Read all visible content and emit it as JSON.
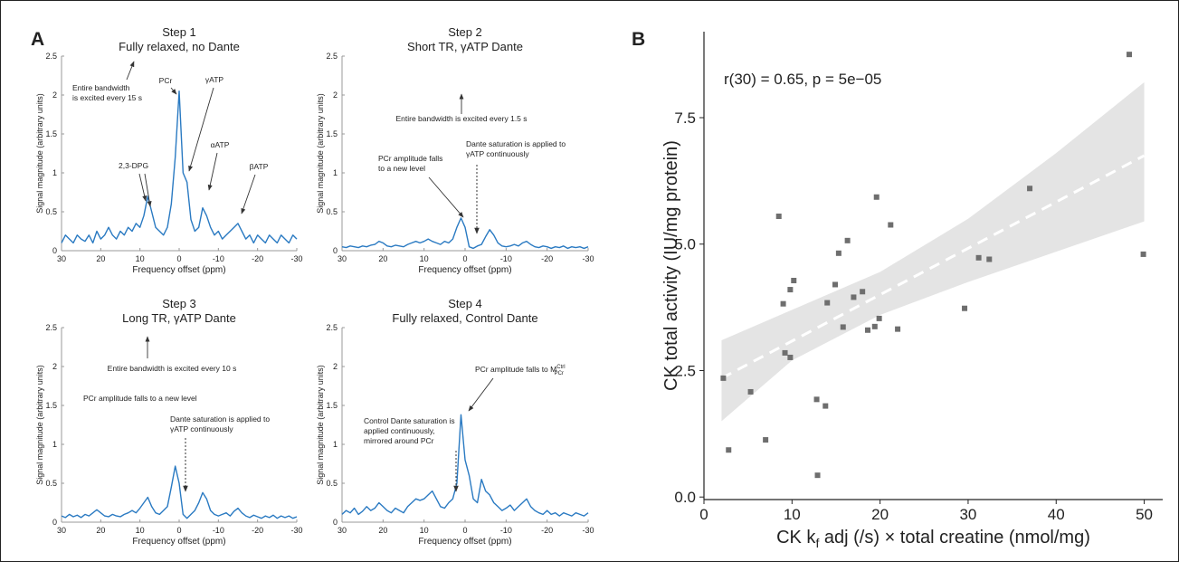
{
  "panel_labels": [
    "A",
    "B"
  ],
  "chart_data": [
    {
      "type": "line",
      "title": "Step 1",
      "subtitle": "Fully relaxed, no Dante",
      "x_label": "Frequency offset (ppm)",
      "y_label": "Signal magnitude (arbitrary units)",
      "color": "#2a7ac2",
      "xlim": [
        30,
        -30
      ],
      "ylim": [
        0,
        2.5
      ],
      "xticks": [
        30,
        20,
        10,
        0,
        -10,
        -20,
        -30
      ],
      "yticks": [
        0,
        0.5,
        1,
        1.5,
        2,
        2.5
      ],
      "x": [
        30,
        29,
        28,
        27,
        26,
        25,
        24,
        23,
        22,
        21,
        20,
        19,
        18,
        17,
        16,
        15,
        14,
        13,
        12,
        11,
        10,
        9,
        8,
        7,
        6,
        5,
        4,
        3,
        2,
        1,
        0,
        -1,
        -2,
        -3,
        -4,
        -5,
        -6,
        -7,
        -8,
        -9,
        -10,
        -11,
        -12,
        -13,
        -14,
        -15,
        -16,
        -17,
        -18,
        -19,
        -20,
        -21,
        -22,
        -23,
        -24,
        -25,
        -26,
        -27,
        -28,
        -29,
        -30
      ],
      "values": [
        0.1,
        0.2,
        0.15,
        0.1,
        0.2,
        0.15,
        0.12,
        0.2,
        0.1,
        0.25,
        0.15,
        0.2,
        0.3,
        0.2,
        0.15,
        0.25,
        0.2,
        0.3,
        0.25,
        0.35,
        0.3,
        0.45,
        0.7,
        0.5,
        0.3,
        0.25,
        0.2,
        0.3,
        0.6,
        1.2,
        2.05,
        1.0,
        0.88,
        0.4,
        0.25,
        0.3,
        0.55,
        0.45,
        0.3,
        0.2,
        0.25,
        0.15,
        0.2,
        0.25,
        0.3,
        0.35,
        0.25,
        0.15,
        0.2,
        0.1,
        0.2,
        0.15,
        0.1,
        0.2,
        0.15,
        0.1,
        0.2,
        0.15,
        0.1,
        0.2,
        0.15
      ],
      "annotations": [
        {
          "lines": [
            "Entire bandwidth",
            "is excited every 15 s"
          ]
        },
        {
          "lines": [
            "PCr"
          ]
        },
        {
          "lines": [
            "γATP"
          ]
        },
        {
          "lines": [
            "αATP"
          ]
        },
        {
          "lines": [
            "βATP"
          ]
        },
        {
          "lines": [
            "2,3-DPG"
          ]
        }
      ]
    },
    {
      "type": "line",
      "title": "Step 2",
      "subtitle": "Short TR, γATP Dante",
      "x_label": "Frequency offset (ppm)",
      "y_label": "Signal magnitude (arbitrary units)",
      "color": "#2a7ac2",
      "xlim": [
        30,
        -30
      ],
      "ylim": [
        0,
        2.5
      ],
      "xticks": [
        30,
        20,
        10,
        0,
        -10,
        -20,
        -30
      ],
      "yticks": [
        0,
        0.5,
        1,
        1.5,
        2,
        2.5
      ],
      "x": [
        30,
        29,
        28,
        27,
        26,
        25,
        24,
        23,
        22,
        21,
        20,
        19,
        18,
        17,
        16,
        15,
        14,
        13,
        12,
        11,
        10,
        9,
        8,
        7,
        6,
        5,
        4,
        3,
        2,
        1,
        0,
        -1,
        -2,
        -3,
        -4,
        -5,
        -6,
        -7,
        -8,
        -9,
        -10,
        -11,
        -12,
        -13,
        -14,
        -15,
        -16,
        -17,
        -18,
        -19,
        -20,
        -21,
        -22,
        -23,
        -24,
        -25,
        -26,
        -27,
        -28,
        -29,
        -30
      ],
      "values": [
        0.05,
        0.04,
        0.06,
        0.05,
        0.04,
        0.06,
        0.05,
        0.07,
        0.08,
        0.12,
        0.1,
        0.06,
        0.05,
        0.07,
        0.06,
        0.05,
        0.08,
        0.1,
        0.12,
        0.1,
        0.12,
        0.15,
        0.12,
        0.1,
        0.08,
        0.12,
        0.1,
        0.15,
        0.3,
        0.42,
        0.3,
        0.05,
        0.03,
        0.06,
        0.08,
        0.18,
        0.27,
        0.2,
        0.1,
        0.06,
        0.05,
        0.06,
        0.08,
        0.06,
        0.1,
        0.12,
        0.08,
        0.05,
        0.04,
        0.06,
        0.05,
        0.03,
        0.05,
        0.04,
        0.06,
        0.03,
        0.05,
        0.04,
        0.05,
        0.03,
        0.05
      ],
      "annotations": [
        {
          "lines": [
            "Entire bandwidth is excited every 1.5 s"
          ]
        },
        {
          "lines": [
            "PCr amplitude falls",
            "to a new level"
          ]
        },
        {
          "lines": [
            "Dante saturation is applied to",
            "γATP continuously"
          ]
        }
      ]
    },
    {
      "type": "line",
      "title": "Step 3",
      "subtitle": "Long TR, γATP Dante",
      "x_label": "Frequency offset (ppm)",
      "y_label": "Signal magnitude (arbitrary units)",
      "color": "#2a7ac2",
      "xlim": [
        30,
        -30
      ],
      "ylim": [
        0,
        2.5
      ],
      "xticks": [
        30,
        20,
        10,
        0,
        -10,
        -20,
        -30
      ],
      "yticks": [
        0,
        0.5,
        1,
        1.5,
        2,
        2.5
      ],
      "x": [
        30,
        29,
        28,
        27,
        26,
        25,
        24,
        23,
        22,
        21,
        20,
        19,
        18,
        17,
        16,
        15,
        14,
        13,
        12,
        11,
        10,
        9,
        8,
        7,
        6,
        5,
        4,
        3,
        2,
        1,
        0,
        -1,
        -2,
        -3,
        -4,
        -5,
        -6,
        -7,
        -8,
        -9,
        -10,
        -11,
        -12,
        -13,
        -14,
        -15,
        -16,
        -17,
        -18,
        -19,
        -20,
        -21,
        -22,
        -23,
        -24,
        -25,
        -26,
        -27,
        -28,
        -29,
        -30
      ],
      "values": [
        0.08,
        0.06,
        0.1,
        0.07,
        0.09,
        0.06,
        0.1,
        0.08,
        0.12,
        0.16,
        0.12,
        0.08,
        0.07,
        0.1,
        0.08,
        0.07,
        0.1,
        0.12,
        0.15,
        0.12,
        0.18,
        0.25,
        0.32,
        0.2,
        0.12,
        0.1,
        0.15,
        0.2,
        0.45,
        0.72,
        0.5,
        0.1,
        0.05,
        0.1,
        0.15,
        0.25,
        0.38,
        0.3,
        0.15,
        0.1,
        0.08,
        0.1,
        0.12,
        0.08,
        0.14,
        0.18,
        0.12,
        0.08,
        0.06,
        0.09,
        0.07,
        0.05,
        0.08,
        0.06,
        0.09,
        0.05,
        0.08,
        0.06,
        0.08,
        0.05,
        0.07
      ],
      "annotations": [
        {
          "lines": [
            "Entire bandwidth is excited every 10 s"
          ]
        },
        {
          "lines": [
            "PCr amplitude falls to a new level"
          ]
        },
        {
          "lines": [
            "Dante saturation is applied to",
            "γATP continuously"
          ]
        }
      ]
    },
    {
      "type": "line",
      "title": "Step 4",
      "subtitle": "Fully relaxed, Control Dante",
      "x_label": "Frequency offset (ppm)",
      "y_label": "Signal magnitude (arbitrary units)",
      "color": "#2a7ac2",
      "xlim": [
        30,
        -30
      ],
      "ylim": [
        0,
        2.5
      ],
      "xticks": [
        30,
        20,
        10,
        0,
        -10,
        -20,
        -30
      ],
      "yticks": [
        0,
        0.5,
        1,
        1.5,
        2,
        2.5
      ],
      "x": [
        30,
        29,
        28,
        27,
        26,
        25,
        24,
        23,
        22,
        21,
        20,
        19,
        18,
        17,
        16,
        15,
        14,
        13,
        12,
        11,
        10,
        9,
        8,
        7,
        6,
        5,
        4,
        3,
        2,
        1,
        0,
        -1,
        -2,
        -3,
        -4,
        -5,
        -6,
        -7,
        -8,
        -9,
        -10,
        -11,
        -12,
        -13,
        -14,
        -15,
        -16,
        -17,
        -18,
        -19,
        -20,
        -21,
        -22,
        -23,
        -24,
        -25,
        -26,
        -27,
        -28,
        -29,
        -30
      ],
      "values": [
        0.1,
        0.15,
        0.12,
        0.18,
        0.1,
        0.14,
        0.2,
        0.15,
        0.18,
        0.25,
        0.2,
        0.15,
        0.12,
        0.18,
        0.15,
        0.12,
        0.2,
        0.25,
        0.3,
        0.28,
        0.3,
        0.35,
        0.4,
        0.3,
        0.2,
        0.18,
        0.25,
        0.3,
        0.5,
        1.38,
        0.8,
        0.6,
        0.3,
        0.25,
        0.55,
        0.4,
        0.35,
        0.25,
        0.2,
        0.15,
        0.18,
        0.22,
        0.15,
        0.2,
        0.25,
        0.3,
        0.2,
        0.15,
        0.12,
        0.1,
        0.15,
        0.1,
        0.12,
        0.08,
        0.12,
        0.1,
        0.08,
        0.12,
        0.1,
        0.08,
        0.12
      ],
      "annotations": [
        {
          "lines": [
            "PCr amplitude falls to M"
          ],
          "sup": "Ctrl",
          "sub": "PCr"
        },
        {
          "lines": [
            "Control Dante saturation is",
            "applied continuously,",
            "mirrored around PCr"
          ]
        }
      ]
    },
    {
      "type": "scatter",
      "x_label": {
        "text": "CK k",
        "sub": "f",
        "rest": " adj (/s) × total creatine (nmol/mg)"
      },
      "y_label": "CK total activity (IU/mg protein)",
      "annotation": "r(30) = 0.65, p = 5e−05",
      "color": "#6e6e6e",
      "band_color": "#e4e4e4",
      "fit_color": "#ffffff",
      "xlim": [
        0,
        52.1
      ],
      "ylim": [
        -0.05,
        9.2
      ],
      "xticks": [
        0,
        10,
        20,
        30,
        40,
        50
      ],
      "yticks": [
        {
          "value": 0,
          "label": "0.0"
        },
        2.5,
        {
          "value": 5,
          "label": "5.0"
        },
        7.5
      ],
      "x": [
        2.2,
        2.8,
        5.3,
        7,
        8.5,
        9,
        9.2,
        9.8,
        10.2,
        9.8,
        12.8,
        12.9,
        13.8,
        14,
        14.9,
        15.3,
        15.8,
        16.3,
        17,
        18,
        18.6,
        19.4,
        19.6,
        19.9,
        21.2,
        22,
        29.6,
        31.2,
        32.4,
        37,
        48.3,
        49.9
      ],
      "values": [
        2.35,
        0.93,
        2.08,
        1.13,
        5.55,
        3.82,
        2.85,
        4.1,
        4.28,
        2.76,
        1.93,
        0.43,
        1.8,
        3.84,
        4.2,
        4.82,
        3.36,
        5.07,
        3.95,
        4.06,
        3.3,
        3.37,
        5.93,
        3.53,
        5.38,
        3.32,
        3.73,
        4.73,
        4.7,
        6.1,
        8.75,
        4.8
      ],
      "fit": {
        "x": [
          2,
          50
        ],
        "values": [
          2.35,
          6.75
        ]
      },
      "band": {
        "x": [
          2,
          10,
          20,
          30,
          40,
          50
        ],
        "lower": [
          1.5,
          2.7,
          3.6,
          4.25,
          4.85,
          5.45
        ],
        "upper": [
          3.1,
          3.7,
          4.45,
          5.5,
          6.8,
          8.2
        ]
      }
    }
  ]
}
